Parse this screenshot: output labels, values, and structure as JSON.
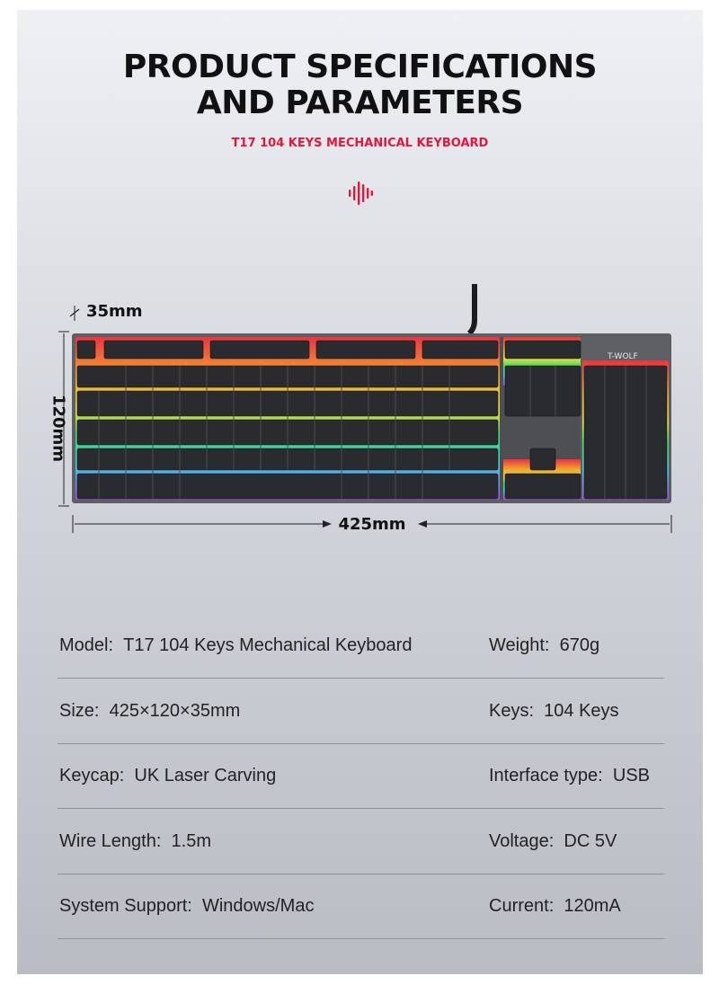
{
  "header": {
    "title_line1": "PRODUCT SPECIFICATIONS",
    "title_line2": "AND PARAMETERS",
    "subtitle": "T17 104 KEYS MECHANICAL KEYBOARD",
    "accent_color": "#e2183a"
  },
  "dimensions": {
    "height": "35mm",
    "depth": "120mm",
    "width": "425mm"
  },
  "keyboard": {
    "brand": "T-WOLF"
  },
  "specs": [
    {
      "left_label": "Model:",
      "left_value": "T17 104 Keys Mechanical Keyboard",
      "right_label": "Weight:",
      "right_value": "670g"
    },
    {
      "left_label": "Size:",
      "left_value": "425×120×35mm",
      "right_label": "Keys:",
      "right_value": "104 Keys"
    },
    {
      "left_label": "Keycap:",
      "left_value": "UK Laser Carving",
      "right_label": "Interface type:",
      "right_value": "USB"
    },
    {
      "left_label": "Wire Length:",
      "left_value": "1.5m",
      "right_label": "Voltage:",
      "right_value": "DC 5V"
    },
    {
      "left_label": "System Support:",
      "left_value": "Windows/Mac",
      "right_label": "Current:",
      "right_value": "120mA"
    }
  ]
}
